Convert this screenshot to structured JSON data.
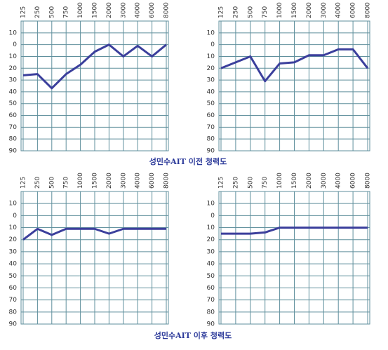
{
  "chart_data": [
    {
      "type": "line",
      "categories": [
        "125",
        "250",
        "500",
        "750",
        "1000",
        "1500",
        "2000",
        "3000",
        "4000",
        "6000",
        "8000"
      ],
      "values": [
        26,
        25,
        37,
        25,
        17,
        6,
        0,
        10,
        1,
        10,
        0
      ],
      "color": "#3b3f9c",
      "ylim": [
        -20,
        90
      ],
      "y_inverted": true,
      "yticks": [
        {
          "value": -10,
          "label": "10"
        },
        0,
        10,
        20,
        30,
        40,
        50,
        60,
        70,
        80,
        90
      ],
      "grid": true
    },
    {
      "type": "line",
      "categories": [
        "125",
        "250",
        "500",
        "750",
        "1000",
        "1500",
        "2000",
        "3000",
        "4000",
        "6000",
        "8000"
      ],
      "values": [
        20,
        15,
        10,
        31,
        16,
        15,
        9,
        9,
        4,
        4,
        20
      ],
      "color": "#3b3f9c",
      "ylim": [
        -20,
        90
      ],
      "y_inverted": true,
      "yticks": [
        {
          "value": -10,
          "label": "10"
        },
        0,
        10,
        20,
        30,
        40,
        50,
        60,
        70,
        80,
        90
      ],
      "grid": true
    },
    {
      "type": "line",
      "categories": [
        "125",
        "250",
        "500",
        "750",
        "1000",
        "1500",
        "2000",
        "3000",
        "4000",
        "6000",
        "8000"
      ],
      "values": [
        20,
        11,
        16,
        11,
        11,
        11,
        15,
        11,
        11,
        11,
        11
      ],
      "color": "#3b3f9c",
      "ylim": [
        -20,
        90
      ],
      "y_inverted": true,
      "yticks": [
        {
          "value": -10,
          "label": "10"
        },
        0,
        10,
        20,
        30,
        40,
        50,
        60,
        70,
        80,
        90
      ],
      "grid": true
    },
    {
      "type": "line",
      "categories": [
        "125",
        "250",
        "500",
        "750",
        "1000",
        "1500",
        "2000",
        "3000",
        "4000",
        "6000",
        "8000"
      ],
      "values": [
        15,
        15,
        15,
        14,
        10,
        10,
        10,
        10,
        10,
        10,
        10
      ],
      "color": "#3b3f9c",
      "ylim": [
        -20,
        90
      ],
      "y_inverted": true,
      "yticks": [
        {
          "value": -10,
          "label": "10"
        },
        0,
        10,
        20,
        30,
        40,
        50,
        60,
        70,
        80,
        90
      ],
      "grid": true
    }
  ],
  "captions": [
    "성민수AIT 이전 청력도",
    "성민수AIT 이후 청력도"
  ]
}
